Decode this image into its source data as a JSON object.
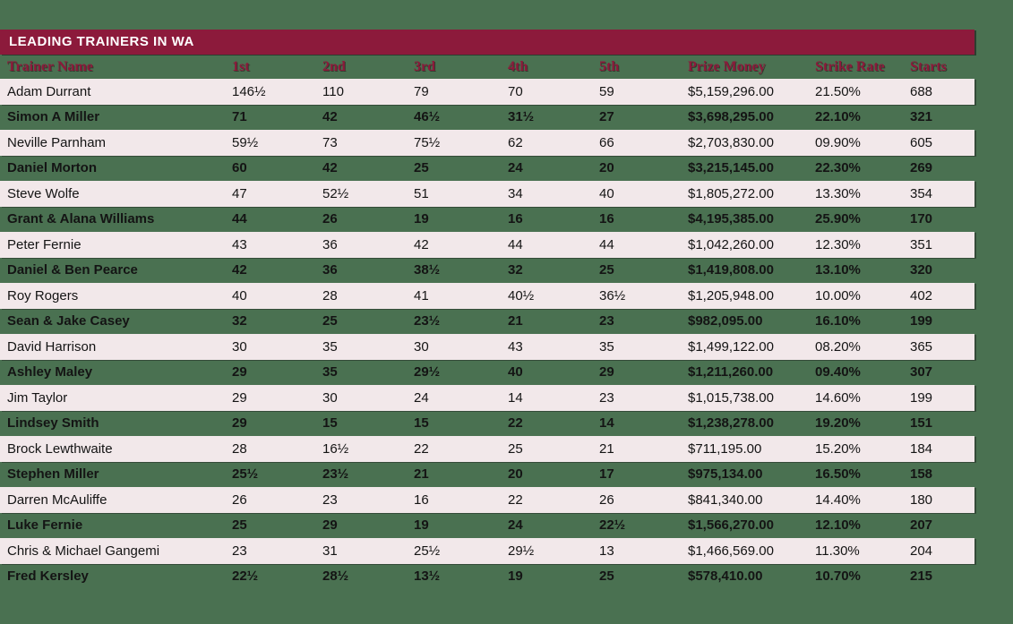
{
  "colors": {
    "page_background": "#4a7151",
    "title_bar": "#8c1a3b",
    "header_text": "#8c1a3b",
    "alt_row_background": "#f2e8ea",
    "title_text": "#ffffff",
    "data_text": "#141414"
  },
  "chart_data": {
    "type": "table",
    "title": "LEADING TRAINERS IN WA",
    "columns": [
      "Trainer Name",
      "1st",
      "2nd",
      "3rd",
      "4th",
      "5th",
      "Prize Money",
      "Strike Rate",
      "Starts"
    ],
    "rows": [
      [
        "Adam Durrant",
        "146½",
        "110",
        "79",
        "70",
        "59",
        "$5,159,296.00",
        "21.50%",
        "688"
      ],
      [
        "Simon A Miller",
        "71",
        "42",
        "46½",
        "31½",
        "27",
        "$3,698,295.00",
        "22.10%",
        "321"
      ],
      [
        "Neville Parnham",
        "59½",
        "73",
        "75½",
        "62",
        "66",
        "$2,703,830.00",
        "09.90%",
        "605"
      ],
      [
        "Daniel Morton",
        "60",
        "42",
        "25",
        "24",
        "20",
        "$3,215,145.00",
        "22.30%",
        "269"
      ],
      [
        "Steve Wolfe",
        "47",
        "52½",
        "51",
        "34",
        "40",
        "$1,805,272.00",
        "13.30%",
        "354"
      ],
      [
        "Grant & Alana Williams",
        "44",
        "26",
        "19",
        "16",
        "16",
        "$4,195,385.00",
        "25.90%",
        "170"
      ],
      [
        "Peter Fernie",
        "43",
        "36",
        "42",
        "44",
        "44",
        "$1,042,260.00",
        "12.30%",
        "351"
      ],
      [
        "Daniel & Ben Pearce",
        "42",
        "36",
        "38½",
        "32",
        "25",
        "$1,419,808.00",
        "13.10%",
        "320"
      ],
      [
        "Roy Rogers",
        "40",
        "28",
        "41",
        "40½",
        "36½",
        "$1,205,948.00",
        "10.00%",
        "402"
      ],
      [
        "Sean & Jake Casey",
        "32",
        "25",
        "23½",
        "21",
        "23",
        "$982,095.00",
        "16.10%",
        "199"
      ],
      [
        "David Harrison",
        "30",
        "35",
        "30",
        "43",
        "35",
        "$1,499,122.00",
        "08.20%",
        "365"
      ],
      [
        "Ashley Maley",
        "29",
        "35",
        "29½",
        "40",
        "29",
        "$1,211,260.00",
        "09.40%",
        "307"
      ],
      [
        "Jim Taylor",
        "29",
        "30",
        "24",
        "14",
        "23",
        "$1,015,738.00",
        "14.60%",
        "199"
      ],
      [
        "Lindsey Smith",
        "29",
        "15",
        "15",
        "22",
        "14",
        "$1,238,278.00",
        "19.20%",
        "151"
      ],
      [
        "Brock Lewthwaite",
        "28",
        "16½",
        "22",
        "25",
        "21",
        "$711,195.00",
        "15.20%",
        "184"
      ],
      [
        "Stephen Miller",
        "25½",
        "23½",
        "21",
        "20",
        "17",
        "$975,134.00",
        "16.50%",
        "158"
      ],
      [
        "Darren McAuliffe",
        "26",
        "23",
        "16",
        "22",
        "26",
        "$841,340.00",
        "14.40%",
        "180"
      ],
      [
        "Luke Fernie",
        "25",
        "29",
        "19",
        "24",
        "22½",
        "$1,566,270.00",
        "12.10%",
        "207"
      ],
      [
        "Chris & Michael Gangemi",
        "23",
        "31",
        "25½",
        "29½",
        "13",
        "$1,466,569.00",
        "11.30%",
        "204"
      ],
      [
        "Fred Kersley",
        "22½",
        "28½",
        "13½",
        "19",
        "25",
        "$578,410.00",
        "10.70%",
        "215"
      ]
    ]
  }
}
